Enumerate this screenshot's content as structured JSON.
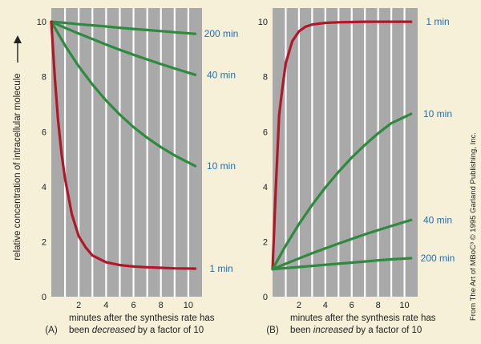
{
  "chart_data": [
    {
      "type": "line",
      "panel": "(A)",
      "ylabel": "relative concentration of intracellular molecule",
      "xlabel_parts": [
        "minutes after the synthesis rate has",
        "been ",
        "decreased",
        " by a factor of 10"
      ],
      "xlim": [
        0,
        11
      ],
      "ylim": [
        0,
        10.5
      ],
      "xticks": [
        2,
        4,
        6,
        8,
        10
      ],
      "yticks": [
        0,
        2,
        4,
        6,
        8,
        10
      ],
      "gridlines": "vertical",
      "series": [
        {
          "name": "200 min",
          "color": "#2e8a3e",
          "x": [
            0,
            1,
            2,
            3,
            4,
            5,
            6,
            7,
            8,
            9,
            10.5
          ],
          "y": [
            10,
            9.96,
            9.91,
            9.87,
            9.83,
            9.78,
            9.74,
            9.7,
            9.66,
            9.62,
            9.56
          ]
        },
        {
          "name": "40 min",
          "color": "#2e8a3e",
          "x": [
            0,
            1,
            2,
            3,
            4,
            5,
            6,
            7,
            8,
            9,
            10.5
          ],
          "y": [
            10,
            9.78,
            9.57,
            9.37,
            9.17,
            8.98,
            8.8,
            8.63,
            8.46,
            8.3,
            8.07
          ]
        },
        {
          "name": "10 min",
          "color": "#2e8a3e",
          "x": [
            0,
            1,
            2,
            3,
            4,
            5,
            6,
            7,
            8,
            9,
            10.5
          ],
          "y": [
            10,
            9.14,
            8.38,
            7.72,
            7.13,
            6.62,
            6.17,
            5.78,
            5.44,
            5.14,
            4.75
          ]
        },
        {
          "name": "1 min",
          "color": "#b0182a",
          "x": [
            0,
            0.25,
            0.5,
            0.75,
            1,
            1.5,
            2,
            2.5,
            3,
            4,
            5,
            6,
            7,
            8,
            9,
            10.5
          ],
          "y": [
            10,
            8.0,
            6.4,
            5.2,
            4.3,
            3.0,
            2.2,
            1.8,
            1.5,
            1.25,
            1.15,
            1.1,
            1.07,
            1.05,
            1.03,
            1.02
          ]
        }
      ]
    },
    {
      "type": "line",
      "panel": "(B)",
      "xlabel_parts": [
        "minutes after the synthesis rate has",
        "been ",
        "increased",
        " by a factor of 10"
      ],
      "xlim": [
        0,
        11
      ],
      "ylim": [
        0,
        10.5
      ],
      "xticks": [
        2,
        4,
        6,
        8,
        10
      ],
      "yticks": [
        0,
        2,
        4,
        6,
        8,
        10
      ],
      "gridlines": "vertical",
      "series": [
        {
          "name": "1 min",
          "color": "#b0182a",
          "x": [
            0,
            0.25,
            0.5,
            0.75,
            1,
            1.5,
            2,
            2.5,
            3,
            4,
            5,
            6,
            7,
            8,
            9,
            10.5
          ],
          "y": [
            1,
            4.0,
            6.6,
            7.6,
            8.5,
            9.3,
            9.65,
            9.82,
            9.9,
            9.96,
            9.98,
            9.99,
            10,
            10,
            10,
            10
          ]
        },
        {
          "name": "10 min",
          "color": "#2e8a3e",
          "x": [
            0,
            1,
            2,
            3,
            4,
            5,
            6,
            7,
            8,
            9,
            10.5
          ],
          "y": [
            1,
            1.86,
            2.64,
            3.34,
            3.97,
            4.54,
            5.06,
            5.52,
            5.94,
            6.31,
            6.65
          ]
        },
        {
          "name": "40 min",
          "color": "#2e8a3e",
          "x": [
            0,
            1,
            2,
            3,
            4,
            5,
            6,
            7,
            8,
            9,
            10.5
          ],
          "y": [
            1,
            1.2,
            1.39,
            1.58,
            1.76,
            1.93,
            2.1,
            2.27,
            2.42,
            2.57,
            2.79
          ]
        },
        {
          "name": "200 min",
          "color": "#2e8a3e",
          "x": [
            0,
            1,
            2,
            3,
            4,
            5,
            6,
            7,
            8,
            9,
            10.5
          ],
          "y": [
            1,
            1.04,
            1.08,
            1.12,
            1.16,
            1.2,
            1.24,
            1.28,
            1.32,
            1.36,
            1.4
          ]
        }
      ]
    }
  ],
  "credit": "From The Art of MBoC³ © 1995 Garland Publishing, Inc.",
  "colors": {
    "plot_bg": "#a9a9a9",
    "grid": "#ffffff",
    "label_blue": "#1f6fb2",
    "paper": "#f7f0d8"
  }
}
